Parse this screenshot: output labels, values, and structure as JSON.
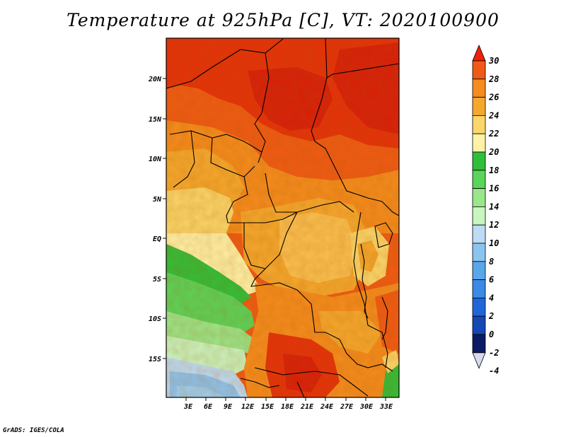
{
  "title": "Temperature at 925hPa [C], VT: 2020100900",
  "footer": "GrADS: IGES/COLA",
  "map": {
    "lon_labels": [
      "3E",
      "6E",
      "9E",
      "12E",
      "15E",
      "18E",
      "21E",
      "24E",
      "27E",
      "30E",
      "33E"
    ],
    "lat_labels": [
      "20N",
      "15N",
      "10N",
      "5N",
      "EQ",
      "5S",
      "10S",
      "15S"
    ]
  },
  "colorbar": {
    "levels": [
      "30",
      "28",
      "26",
      "24",
      "22",
      "20",
      "18",
      "16",
      "14",
      "12",
      "10",
      "8",
      "6",
      "4",
      "2",
      "0",
      "-2",
      "-4"
    ],
    "colors": [
      "#f0200a",
      "#f05a14",
      "#f58c1e",
      "#f5a82e",
      "#fbd66a",
      "#fff2a8",
      "#2fbf3a",
      "#5ad45a",
      "#9ae68a",
      "#c8f5c0",
      "#bcdcf5",
      "#8cc4f0",
      "#5aa6ea",
      "#3a8ae6",
      "#2066d8",
      "#1448b4",
      "#0a1c64",
      "#d8d8ef"
    ]
  }
}
